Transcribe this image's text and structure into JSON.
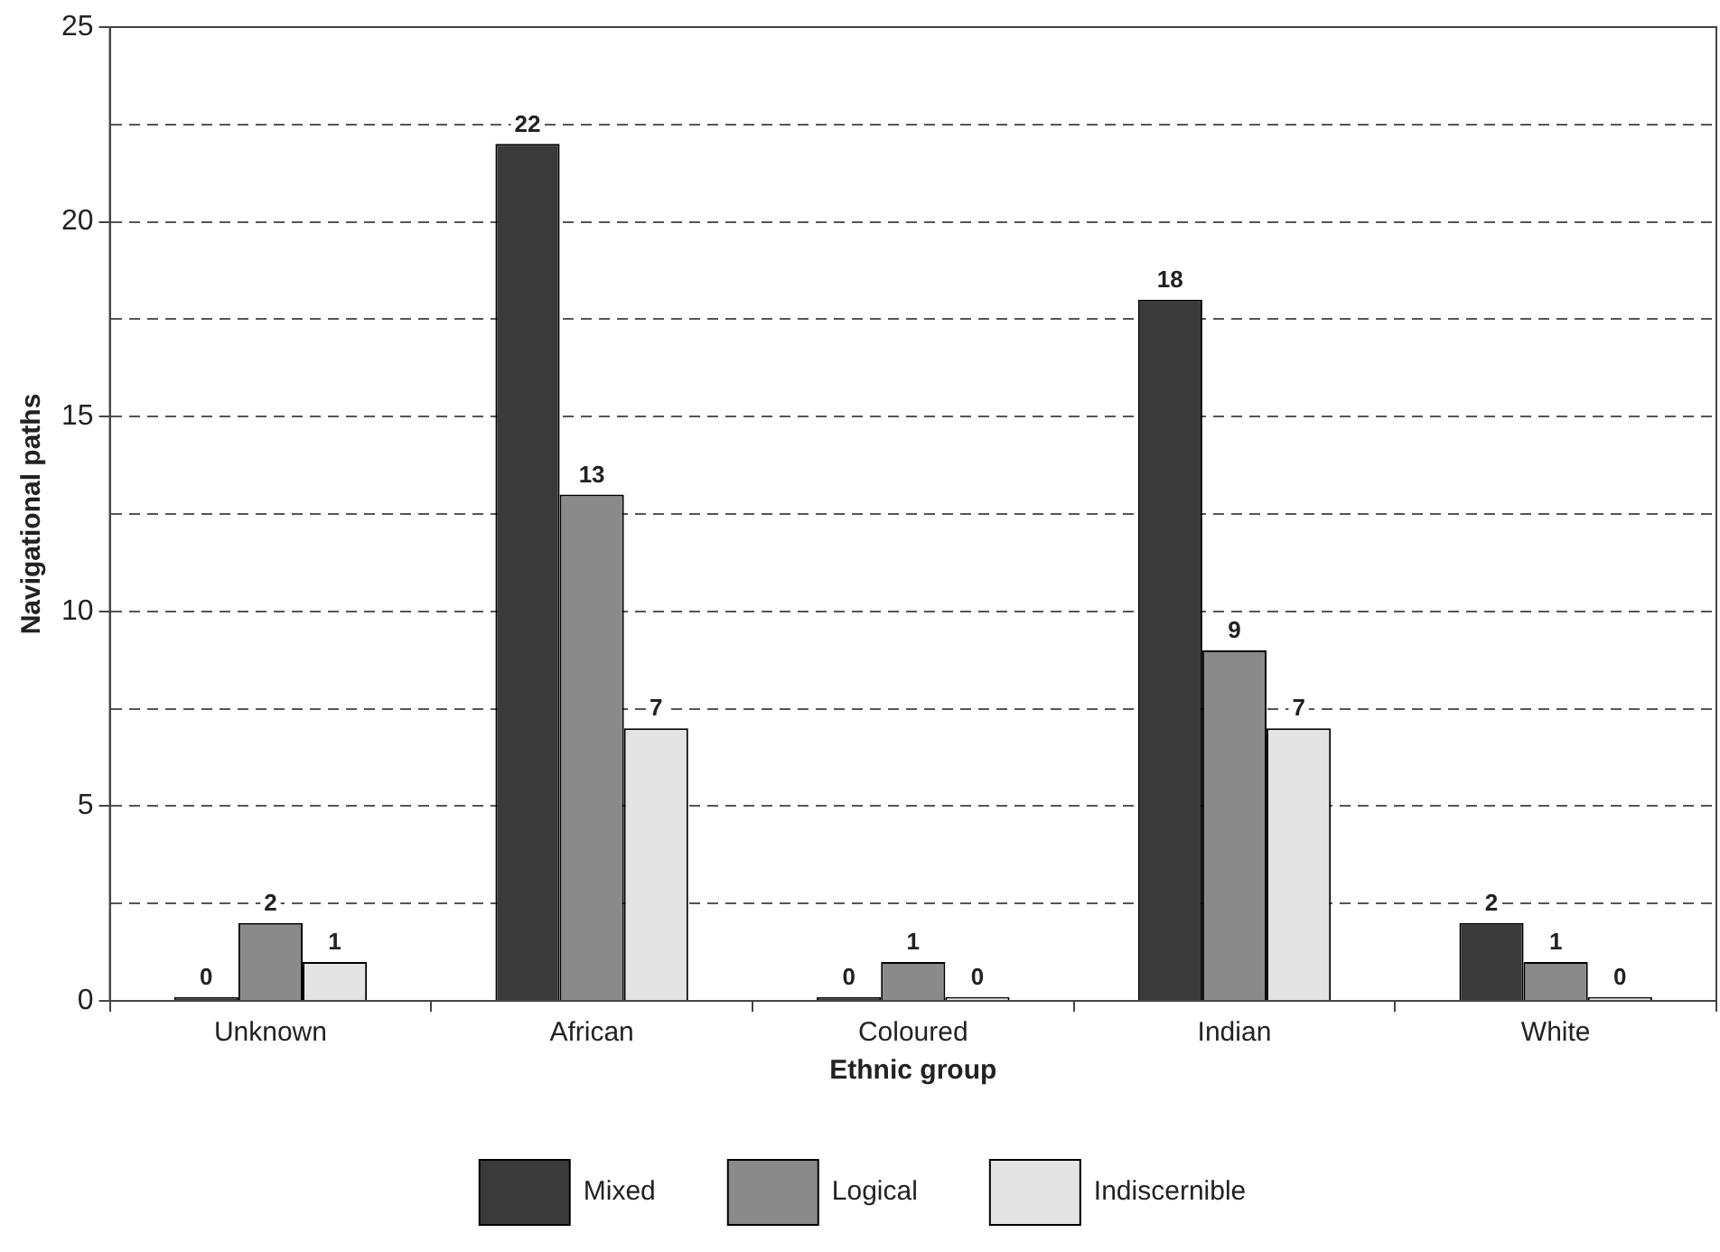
{
  "chart_data": {
    "type": "bar",
    "xlabel": "Ethnic group",
    "ylabel": "Navigational paths",
    "categories": [
      "Unknown",
      "African",
      "Coloured",
      "Indian",
      "White"
    ],
    "series": [
      {
        "name": "Mixed",
        "color": "#3a3a3a",
        "values": [
          0,
          22,
          0,
          18,
          2
        ]
      },
      {
        "name": "Logical",
        "color": "#8a8a8a",
        "values": [
          2,
          13,
          1,
          9,
          1
        ]
      },
      {
        "name": "Indiscernible",
        "color": "#e4e4e4",
        "values": [
          1,
          7,
          0,
          7,
          0
        ]
      }
    ],
    "ylim": [
      0,
      25
    ],
    "yticks": [
      0,
      {
        "value": 2.5,
        "label": null
      },
      5,
      {
        "value": 7.5,
        "label": null
      },
      10,
      {
        "value": 12.5,
        "label": null
      },
      15,
      {
        "value": 17.5,
        "label": null
      },
      20,
      {
        "value": 22.5,
        "label": null
      },
      25
    ],
    "grid": "y",
    "legend": "bottom",
    "data_labels": true
  }
}
